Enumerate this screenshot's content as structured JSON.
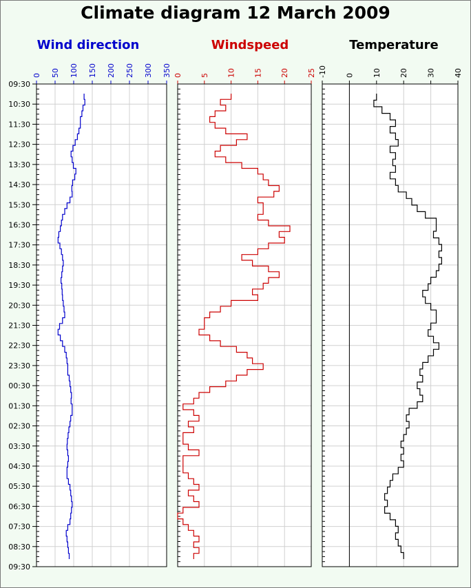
{
  "title": "Climate diagram 12 March 2009",
  "time_labels": [
    "09:30",
    "10:30",
    "11:30",
    "12:30",
    "13:30",
    "14:30",
    "15:30",
    "16:30",
    "17:30",
    "18:30",
    "19:30",
    "20:30",
    "21:30",
    "22:30",
    "23:30",
    "00:30",
    "01:30",
    "02:30",
    "03:30",
    "04:30",
    "05:30",
    "06:30",
    "07:30",
    "08:30",
    "09:30"
  ],
  "colors": {
    "wind_direction": "#0000cc",
    "windspeed": "#cc0000",
    "temperature": "#000000",
    "background": "#f2fbf2",
    "grid": "#d0d0d0"
  },
  "chart_data": [
    {
      "type": "line",
      "title": "Wind direction",
      "xlim": [
        0,
        350
      ],
      "xticks": [
        "0",
        "50",
        "100",
        "150",
        "200",
        "250",
        "300",
        "350"
      ],
      "y_axis": "time",
      "values": [
        128,
        130,
        125,
        122,
        118,
        118,
        114,
        110,
        104,
        98,
        93,
        96,
        99,
        106,
        103,
        97,
        95,
        96,
        90,
        82,
        76,
        70,
        67,
        64,
        60,
        58,
        63,
        67,
        70,
        72,
        70,
        68,
        66,
        68,
        69,
        70,
        72,
        74,
        76,
        70,
        62,
        58,
        64,
        70,
        76,
        80,
        82,
        84,
        84,
        88,
        90,
        92,
        94,
        93,
        96,
        96,
        92,
        90,
        87,
        85,
        83,
        82,
        84,
        86,
        84,
        82,
        82,
        86,
        90,
        92,
        94,
        96,
        94,
        92,
        90,
        84,
        80,
        82,
        84,
        86,
        88
      ],
      "color": "#0000cc"
    },
    {
      "type": "line",
      "title": "Windspeed",
      "xlim": [
        0,
        25
      ],
      "xticks": [
        "0",
        "5",
        "10",
        "15",
        "20",
        "25"
      ],
      "y_axis": "time",
      "values": [
        10,
        8,
        9,
        7,
        6,
        7,
        9,
        13,
        11,
        8,
        7,
        9,
        12,
        15,
        16,
        17,
        19,
        18,
        15,
        16,
        16,
        15,
        17,
        21,
        19,
        20,
        17,
        15,
        12,
        14,
        17,
        19,
        17,
        16,
        14,
        15,
        10,
        8,
        6,
        5,
        5,
        4,
        6,
        8,
        11,
        13,
        14,
        16,
        13,
        11,
        9,
        6,
        4,
        3,
        1,
        3,
        4,
        2,
        3,
        1,
        1,
        2,
        4,
        1,
        1,
        1,
        2,
        3,
        4,
        2,
        3,
        4,
        1,
        0,
        1,
        2,
        3,
        4,
        3,
        4,
        3
      ],
      "color": "#cc0000"
    },
    {
      "type": "line",
      "title": "Temperature",
      "xlim": [
        -10,
        40
      ],
      "xticks": [
        "-10",
        "0",
        "10",
        "20",
        "30",
        "40"
      ],
      "y_axis": "time",
      "values": [
        10,
        9,
        12,
        15,
        17,
        15,
        17,
        18,
        15,
        17,
        16,
        17,
        15,
        17,
        18,
        21,
        23,
        25,
        28,
        32,
        32,
        31,
        33,
        34,
        33,
        34,
        33,
        32,
        30,
        29,
        27,
        28,
        30,
        32,
        32,
        30,
        29,
        31,
        33,
        31,
        29,
        27,
        26,
        27,
        25,
        26,
        27,
        25,
        22,
        21,
        22,
        21,
        20,
        19,
        20,
        19,
        20,
        18,
        16,
        15,
        14,
        13,
        14,
        13,
        15,
        17,
        18,
        17,
        18,
        19,
        20
      ],
      "color": "#000000"
    }
  ]
}
